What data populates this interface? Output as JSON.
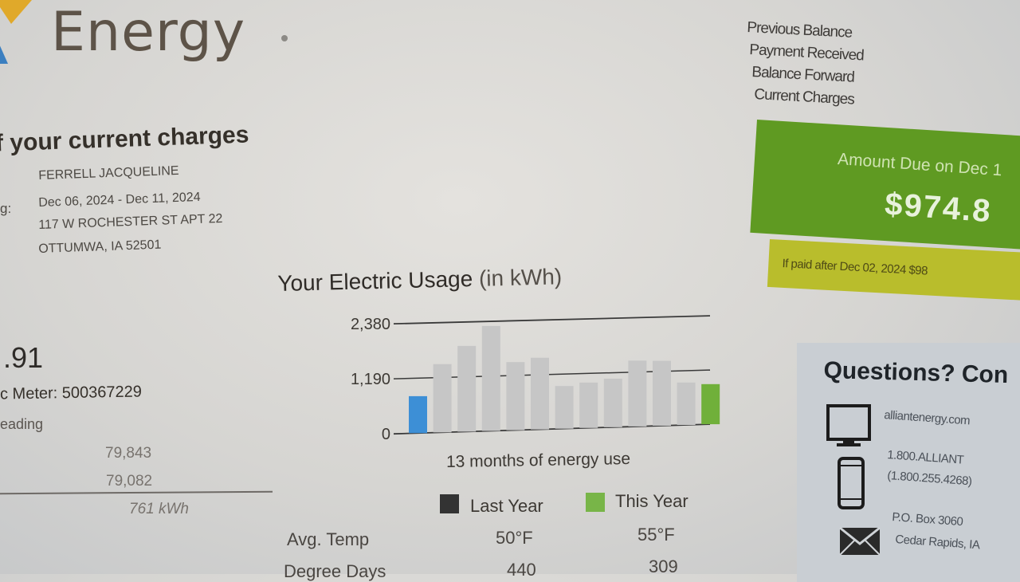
{
  "header": {
    "brand": "Energy"
  },
  "summary": {
    "section_title": "f your current charges",
    "customer_name": "FERRELL JACQUELINE",
    "billing_period_label": "g:",
    "billing_period": "Dec 06, 2024 - Dec 11, 2024",
    "address_line1": "117 W ROCHESTER ST APT 22",
    "address_line2": "OTTUMWA, IA 52501",
    "amount_fragment": ".91",
    "meter_label": "c Meter: 500367229",
    "reading_label": "eading",
    "reading_current": "79,843",
    "reading_previous": "79,082",
    "usage_total": "761 kWh"
  },
  "chart_data": {
    "type": "bar",
    "title": "Your Electric Usage",
    "title_unit": "(in kWh)",
    "subtitle": "13 months of energy use",
    "y_ticks": [
      "2,380",
      "1,190",
      "0"
    ],
    "ylim": [
      0,
      2380
    ],
    "values": [
      800,
      1480,
      1860,
      2280,
      1480,
      1560,
      930,
      990,
      1060,
      1440,
      1420,
      930,
      880
    ],
    "colors": [
      "#3d8fd6",
      "#c6c6c6",
      "#c6c6c6",
      "#c6c6c6",
      "#c6c6c6",
      "#c6c6c6",
      "#c6c6c6",
      "#c6c6c6",
      "#c6c6c6",
      "#c6c6c6",
      "#c6c6c6",
      "#c6c6c6",
      "#70b03a"
    ],
    "legend": [
      {
        "label": "Last Year",
        "color": "#333333"
      },
      {
        "label": "This Year",
        "color": "#78b548"
      }
    ]
  },
  "stats": {
    "avg_temp_label": "Avg. Temp",
    "avg_temp_last": "50°F",
    "avg_temp_this": "55°F",
    "degree_days_label": "Degree Days",
    "degree_days_last": "440",
    "degree_days_this": "309"
  },
  "account": {
    "previous_balance_label": "Previous Balance",
    "payment_received_label": "Payment Received",
    "balance_forward_label": "Balance Forward",
    "current_charges_label": "Current Charges",
    "amount_due_label": "Amount Due on Dec 1",
    "amount_due": "$974.8",
    "late_notice": "If paid after Dec 02, 2024 $98"
  },
  "questions": {
    "title": "Questions? Con",
    "website": "alliantenergy.com",
    "phone_line1": "1.800.ALLIANT",
    "phone_line2": "(1.800.255.4268)",
    "mail_line1": "P.O. Box 3060",
    "mail_line2": "Cedar Rapids, IA"
  }
}
